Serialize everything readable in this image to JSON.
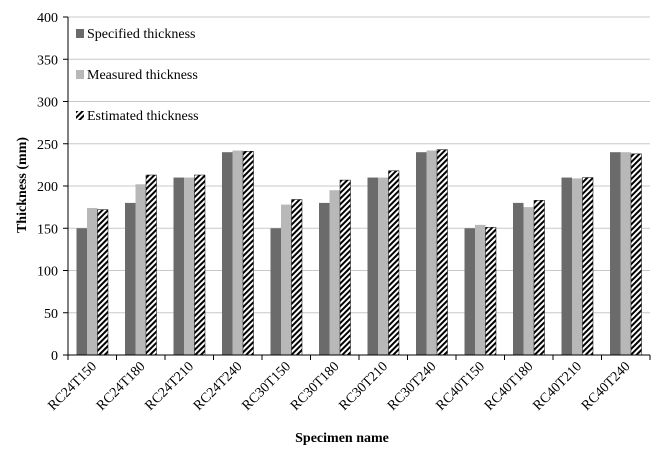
{
  "chart_data": {
    "type": "bar",
    "xlabel": "Specimen name",
    "ylabel": "Thickness (mm)",
    "ylim": [
      0,
      400
    ],
    "yticks": [
      0,
      50,
      100,
      150,
      200,
      250,
      300,
      350,
      400
    ],
    "grid": "horizontal",
    "legend_position": "upper-left inside plot",
    "categories": [
      "RC24T150",
      "RC24T180",
      "RC24T210",
      "RC24T240",
      "RC30T150",
      "RC30T180",
      "RC30T210",
      "RC30T240",
      "RC40T150",
      "RC40T180",
      "RC40T210",
      "RC40T240"
    ],
    "series": [
      {
        "name": "Specified thickness",
        "color": "#6b6b6b",
        "pattern": "solid",
        "values": [
          150,
          180,
          210,
          240,
          150,
          180,
          210,
          240,
          150,
          180,
          210,
          240
        ]
      },
      {
        "name": "Measured thickness",
        "color": "#b8b8b8",
        "pattern": "solid",
        "values": [
          174,
          202,
          210,
          242,
          178,
          195,
          210,
          242,
          154,
          175,
          209,
          240
        ]
      },
      {
        "name": "Estimated thickness",
        "color": "#000000",
        "pattern": "diagonal-hatch",
        "values": [
          172,
          213,
          213,
          241,
          184,
          207,
          218,
          243,
          151,
          183,
          210,
          238
        ]
      }
    ]
  }
}
